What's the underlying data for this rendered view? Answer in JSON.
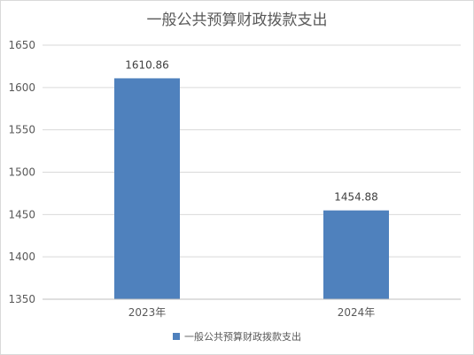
{
  "chart_data": {
    "type": "bar",
    "title": "一般公共预算财政拨款支出",
    "categories": [
      "2023年",
      "2024年"
    ],
    "series": [
      {
        "name": "一般公共预算财政拨款支出",
        "values": [
          1610.86,
          1454.88
        ],
        "color": "#4f81bd"
      }
    ],
    "data_labels": [
      "1610.86",
      "1454.88"
    ],
    "ylim": [
      1350,
      1650
    ],
    "yticks": [
      1350,
      1400,
      1450,
      1500,
      1550,
      1600,
      1650
    ],
    "grid": true,
    "legend": "bottom"
  }
}
